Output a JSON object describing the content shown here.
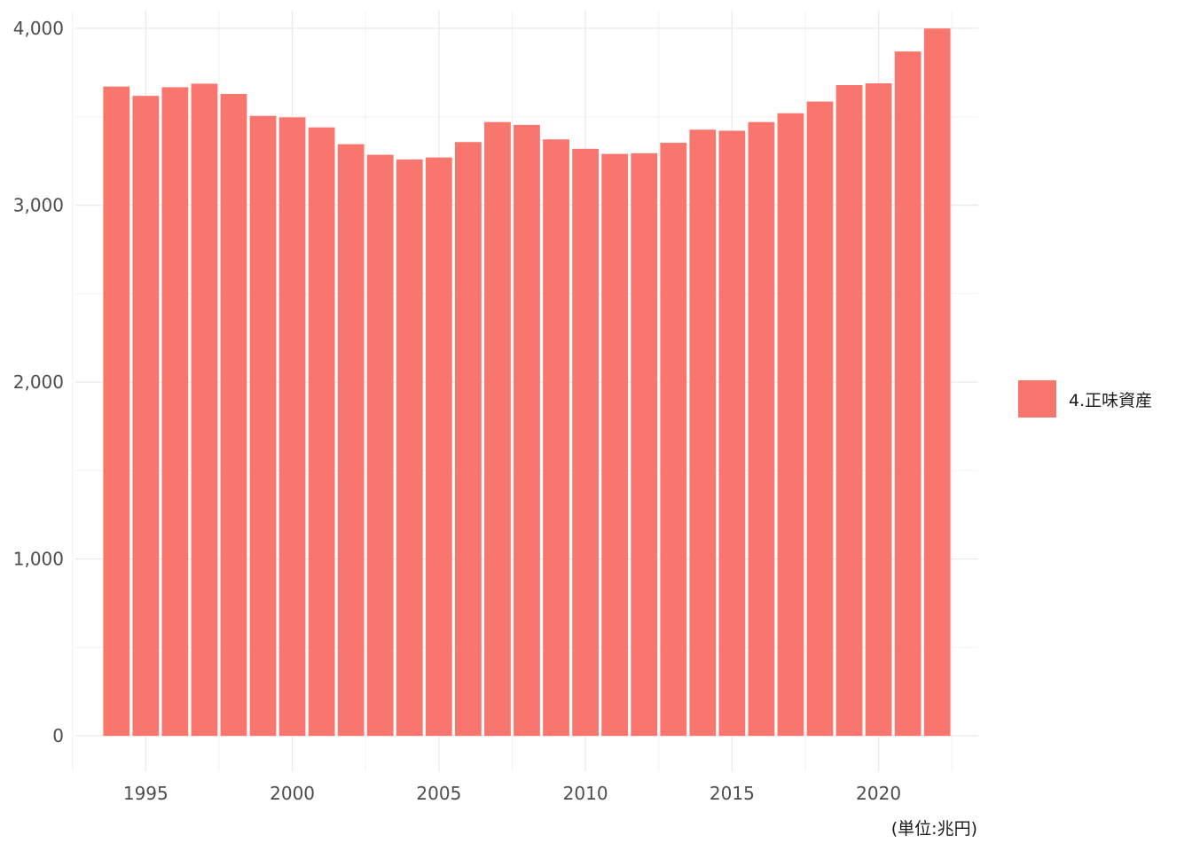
{
  "chart_data": {
    "type": "bar",
    "x": [
      1994,
      1995,
      1996,
      1997,
      1998,
      1999,
      2000,
      2001,
      2002,
      2003,
      2004,
      2005,
      2006,
      2007,
      2008,
      2009,
      2010,
      2011,
      2012,
      2013,
      2014,
      2015,
      2016,
      2017,
      2018,
      2019,
      2020,
      2021,
      2022
    ],
    "series": [
      {
        "name": "4.正味資産",
        "color": "#F8766D",
        "values": [
          3671,
          3618,
          3667,
          3687,
          3629,
          3505,
          3497,
          3440,
          3345,
          3285,
          3259,
          3270,
          3357,
          3470,
          3454,
          3372,
          3319,
          3290,
          3294,
          3353,
          3427,
          3421,
          3470,
          3520,
          3586,
          3679,
          3689,
          3869,
          3999
        ]
      }
    ],
    "y_ticks": [
      0,
      1000,
      2000,
      3000,
      4000
    ],
    "y_tick_labels": [
      "0",
      "1,000",
      "2,000",
      "3,000",
      "4,000"
    ],
    "x_ticks": [
      1995,
      2000,
      2005,
      2010,
      2015,
      2020
    ],
    "x_tick_labels": [
      "1995",
      "2000",
      "2005",
      "2010",
      "2015",
      "2020"
    ],
    "ylim": [
      -200,
      4100
    ],
    "xlim": [
      1992.6,
      2023.4
    ],
    "grid": true,
    "legend_position": "right",
    "caption": "(単位:兆円)",
    "title": "",
    "xlabel": "",
    "ylabel": ""
  }
}
